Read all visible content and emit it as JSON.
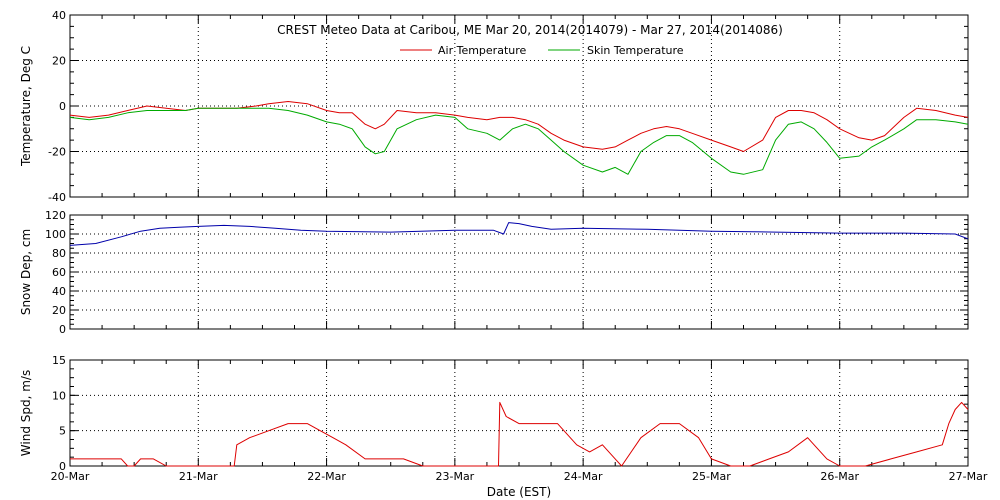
{
  "chart_data": {
    "type": "line",
    "title": "CREST Meteo Data at Caribou, ME   Mar 20, 2014(2014079) - Mar 27, 2014(2014086)",
    "xlabel": "Date (EST)",
    "x_tick_labels": [
      "20-Mar",
      "21-Mar",
      "22-Mar",
      "23-Mar",
      "24-Mar",
      "25-Mar",
      "26-Mar",
      "27-Mar"
    ],
    "x_range_days": [
      0,
      7
    ],
    "grid": true,
    "panels": [
      {
        "ylabel": "Temperature, Deg C",
        "ylim": [
          -40,
          40
        ],
        "y_ticks": [
          -40,
          -20,
          0,
          20,
          40
        ],
        "legend": "top-center",
        "series": [
          {
            "name": "Air Temperature",
            "color": "#dd0000",
            "x": [
              0.0,
              0.15,
              0.3,
              0.45,
              0.6,
              0.75,
              0.9,
              1.0,
              1.15,
              1.3,
              1.45,
              1.55,
              1.7,
              1.85,
              2.0,
              2.1,
              2.2,
              2.3,
              2.38,
              2.45,
              2.55,
              2.7,
              2.85,
              3.0,
              3.1,
              3.25,
              3.35,
              3.45,
              3.55,
              3.65,
              3.75,
              3.85,
              4.0,
              4.15,
              4.25,
              4.35,
              4.45,
              4.55,
              4.65,
              4.75,
              4.85,
              5.0,
              5.15,
              5.25,
              5.4,
              5.5,
              5.6,
              5.7,
              5.8,
              5.9,
              6.0,
              6.15,
              6.25,
              6.35,
              6.5,
              6.6,
              6.75,
              6.9,
              7.0
            ],
            "y": [
              -4,
              -5,
              -4,
              -2,
              0,
              -1,
              -2,
              -1,
              -1,
              -1,
              0,
              1,
              2,
              1,
              -2,
              -3,
              -3,
              -8,
              -10,
              -8,
              -2,
              -3,
              -3,
              -4,
              -5,
              -6,
              -5,
              -5,
              -6,
              -8,
              -12,
              -15,
              -18,
              -19,
              -18,
              -15,
              -12,
              -10,
              -9,
              -10,
              -12,
              -15,
              -18,
              -20,
              -15,
              -5,
              -2,
              -2,
              -3,
              -6,
              -10,
              -14,
              -15,
              -13,
              -5,
              -1,
              -2,
              -4,
              -5
            ]
          },
          {
            "name": "Skin Temperature",
            "color": "#00aa00",
            "x": [
              0.0,
              0.15,
              0.3,
              0.45,
              0.6,
              0.75,
              0.9,
              1.0,
              1.15,
              1.3,
              1.45,
              1.55,
              1.7,
              1.85,
              2.0,
              2.1,
              2.2,
              2.3,
              2.38,
              2.45,
              2.55,
              2.7,
              2.85,
              3.0,
              3.1,
              3.25,
              3.35,
              3.45,
              3.55,
              3.65,
              3.75,
              3.85,
              4.0,
              4.15,
              4.25,
              4.35,
              4.45,
              4.55,
              4.65,
              4.75,
              4.85,
              5.0,
              5.15,
              5.25,
              5.4,
              5.5,
              5.6,
              5.7,
              5.8,
              5.9,
              6.0,
              6.15,
              6.25,
              6.35,
              6.5,
              6.6,
              6.75,
              6.9,
              7.0
            ],
            "y": [
              -5,
              -6,
              -5,
              -3,
              -2,
              -2,
              -2,
              -1,
              -1,
              -1,
              -1,
              -1,
              -2,
              -4,
              -7,
              -8,
              -10,
              -18,
              -21,
              -20,
              -10,
              -6,
              -4,
              -5,
              -10,
              -12,
              -15,
              -10,
              -8,
              -10,
              -15,
              -20,
              -26,
              -29,
              -27,
              -30,
              -20,
              -16,
              -13,
              -13,
              -16,
              -23,
              -29,
              -30,
              -28,
              -15,
              -8,
              -7,
              -10,
              -16,
              -23,
              -22,
              -18,
              -15,
              -10,
              -6,
              -6,
              -7,
              -8
            ]
          }
        ]
      },
      {
        "ylabel": "Snow Dep, cm",
        "ylim": [
          0,
          120
        ],
        "y_ticks": [
          0,
          20,
          40,
          60,
          80,
          100,
          120
        ],
        "series": [
          {
            "name": "",
            "color": "#0000aa",
            "x": [
              0.0,
              0.2,
              0.4,
              0.55,
              0.7,
              0.85,
              1.0,
              1.2,
              1.4,
              1.6,
              1.8,
              2.0,
              2.5,
              3.0,
              3.3,
              3.38,
              3.42,
              3.5,
              3.6,
              3.75,
              4.0,
              4.5,
              5.0,
              5.5,
              6.0,
              6.5,
              6.9,
              7.0
            ],
            "y": [
              88,
              90,
              97,
              103,
              106,
              107,
              108,
              109,
              108,
              106,
              104,
              103,
              102,
              104,
              104,
              100,
              112,
              111,
              108,
              105,
              106,
              105,
              103,
              102,
              101,
              101,
              100,
              95
            ]
          }
        ]
      },
      {
        "ylabel": "Wind Spd, m/s",
        "ylim": [
          0,
          15
        ],
        "y_ticks": [
          0,
          5,
          10,
          15
        ],
        "series": [
          {
            "name": "",
            "color": "#dd0000",
            "x": [
              0.0,
              0.1,
              0.25,
              0.4,
              0.45,
              0.5,
              0.55,
              0.65,
              0.75,
              0.8,
              1.0,
              1.2,
              1.28,
              1.3,
              1.4,
              1.55,
              1.7,
              1.85,
              1.95,
              2.05,
              2.15,
              2.3,
              2.45,
              2.6,
              2.75,
              2.9,
              3.0,
              3.2,
              3.34,
              3.35,
              3.4,
              3.5,
              3.65,
              3.8,
              3.95,
              4.05,
              4.15,
              4.25,
              4.3,
              4.45,
              4.6,
              4.75,
              4.9,
              5.0,
              5.15,
              5.3,
              5.45,
              5.6,
              5.75,
              5.9,
              6.0,
              6.2,
              6.4,
              6.6,
              6.8,
              6.85,
              6.9,
              6.95,
              7.0
            ],
            "y": [
              1,
              1,
              1,
              1,
              0,
              0,
              1,
              1,
              0,
              0,
              0,
              0,
              0,
              3,
              4,
              5,
              6,
              6,
              5,
              4,
              3,
              1,
              1,
              1,
              0,
              0,
              0,
              0,
              0,
              9,
              7,
              6,
              6,
              6,
              3,
              2,
              3,
              1,
              0,
              4,
              6,
              6,
              4,
              1,
              0,
              0,
              1,
              2,
              4,
              1,
              0,
              0,
              1,
              2,
              3,
              6,
              8,
              9,
              8
            ]
          }
        ]
      }
    ]
  }
}
